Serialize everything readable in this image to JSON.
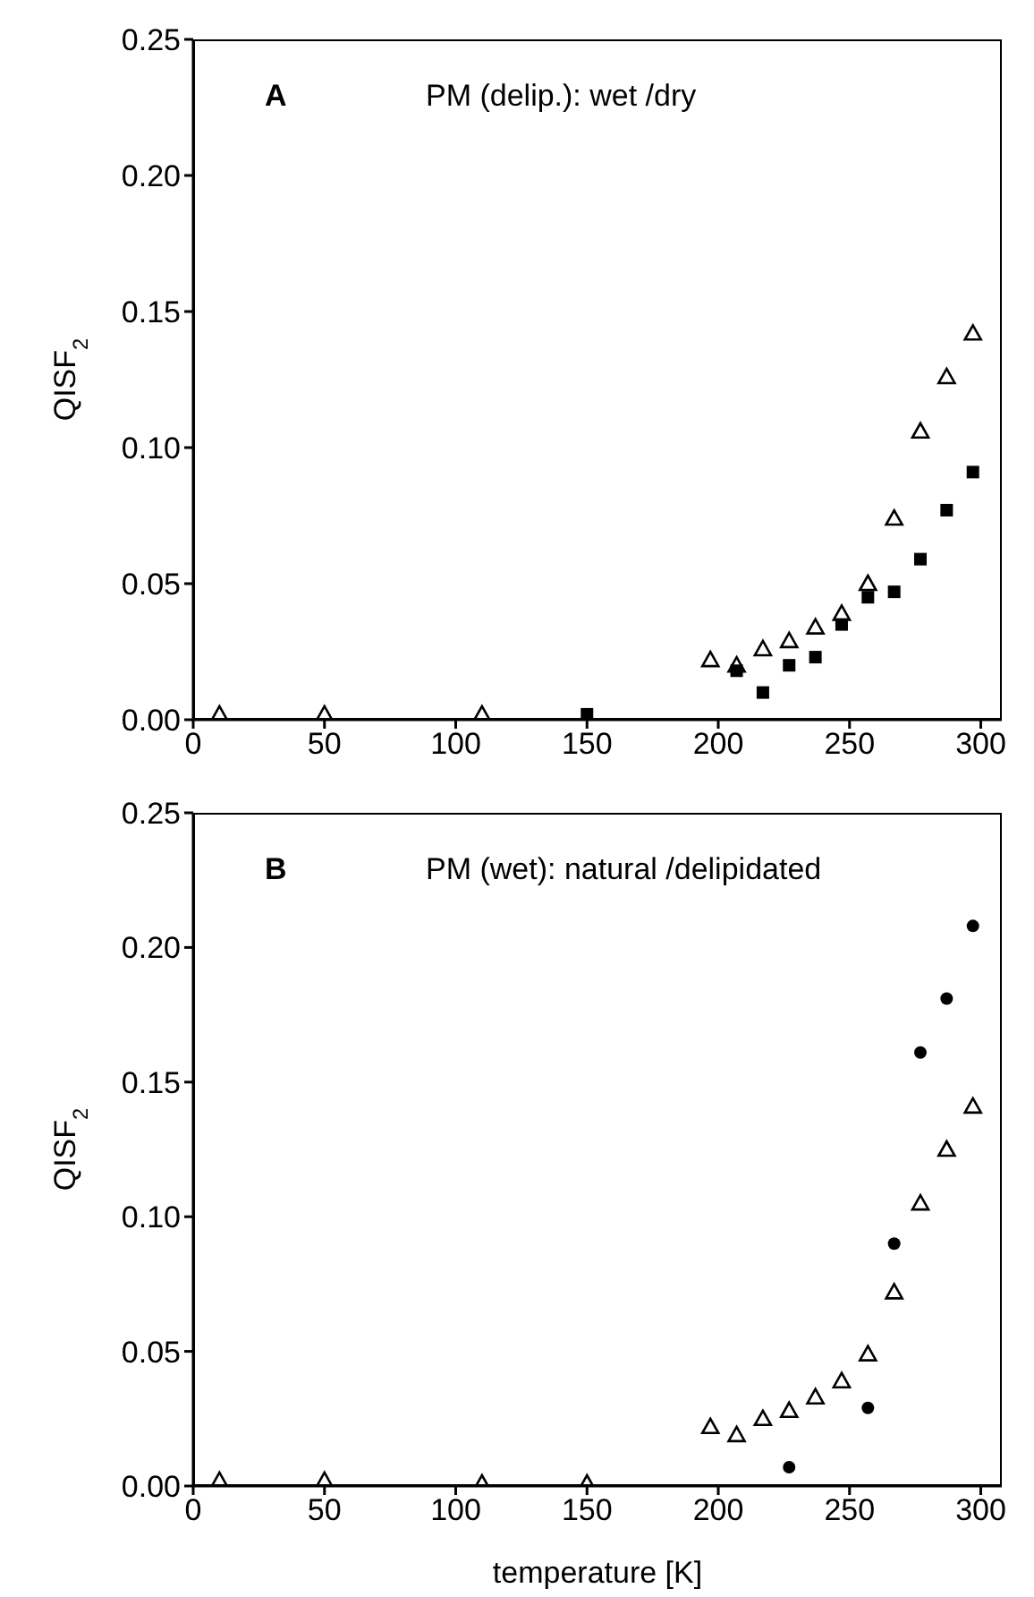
{
  "chart_data": [
    {
      "type": "scatter",
      "annotations": [
        "A",
        "PM (delip.): wet /dry"
      ],
      "ylabel": "QISF$_{2}$",
      "xlim": [
        0,
        308
      ],
      "xticks": [
        0,
        50,
        100,
        150,
        200,
        250,
        300
      ],
      "ylim": [
        0,
        0.25
      ],
      "yticks": [
        {
          "value": 0,
          "label": "0.00"
        },
        0.05,
        {
          "value": 0.1,
          "label": "0.10"
        },
        0.15,
        {
          "value": 0.2,
          "label": "0.20"
        },
        0.25
      ],
      "grid": false,
      "legend": false,
      "series": [
        {
          "color": "#000000",
          "marker": "triangle",
          "x": [
            10,
            50,
            110,
            197,
            207,
            217,
            227,
            237,
            247,
            257,
            267,
            277,
            287,
            297
          ],
          "values": [
            0.002,
            0.002,
            0.002,
            0.022,
            0.02,
            0.026,
            0.029,
            0.034,
            0.039,
            0.05,
            0.074,
            0.106,
            0.126,
            0.142
          ]
        },
        {
          "color": "#000000",
          "marker": "square",
          "x": [
            150,
            207,
            217,
            227,
            237,
            247,
            257,
            267,
            277,
            287,
            297
          ],
          "values": [
            0.002,
            0.018,
            0.01,
            0.02,
            0.023,
            0.035,
            0.045,
            0.047,
            0.059,
            0.077,
            0.091
          ]
        }
      ]
    },
    {
      "type": "scatter",
      "annotations": [
        "B",
        "PM (wet): natural /delipidated"
      ],
      "ylabel": "QISF$_{2}$",
      "xlabel": "temperature [K]",
      "xlim": [
        0,
        308
      ],
      "xticks": [
        0,
        50,
        100,
        150,
        200,
        250,
        300
      ],
      "ylim": [
        0,
        0.25
      ],
      "yticks": [
        {
          "value": 0,
          "label": "0.00"
        },
        0.05,
        {
          "value": 0.1,
          "label": "0.10"
        },
        0.15,
        {
          "value": 0.2,
          "label": "0.20"
        },
        0.25
      ],
      "grid": false,
      "legend": false,
      "series": [
        {
          "color": "#000000",
          "marker": "triangle",
          "x": [
            10,
            50,
            110,
            150,
            197,
            207,
            217,
            227,
            237,
            247,
            257,
            267,
            277,
            287,
            297
          ],
          "values": [
            0.002,
            0.002,
            0.001,
            0.001,
            0.022,
            0.019,
            0.025,
            0.028,
            0.033,
            0.039,
            0.049,
            0.072,
            0.105,
            0.125,
            0.141
          ]
        },
        {
          "color": "#000000",
          "marker": "circle",
          "x": [
            227,
            257,
            267,
            277,
            287,
            297
          ],
          "values": [
            0.007,
            0.029,
            0.09,
            0.161,
            0.181,
            0.208
          ]
        }
      ]
    }
  ]
}
